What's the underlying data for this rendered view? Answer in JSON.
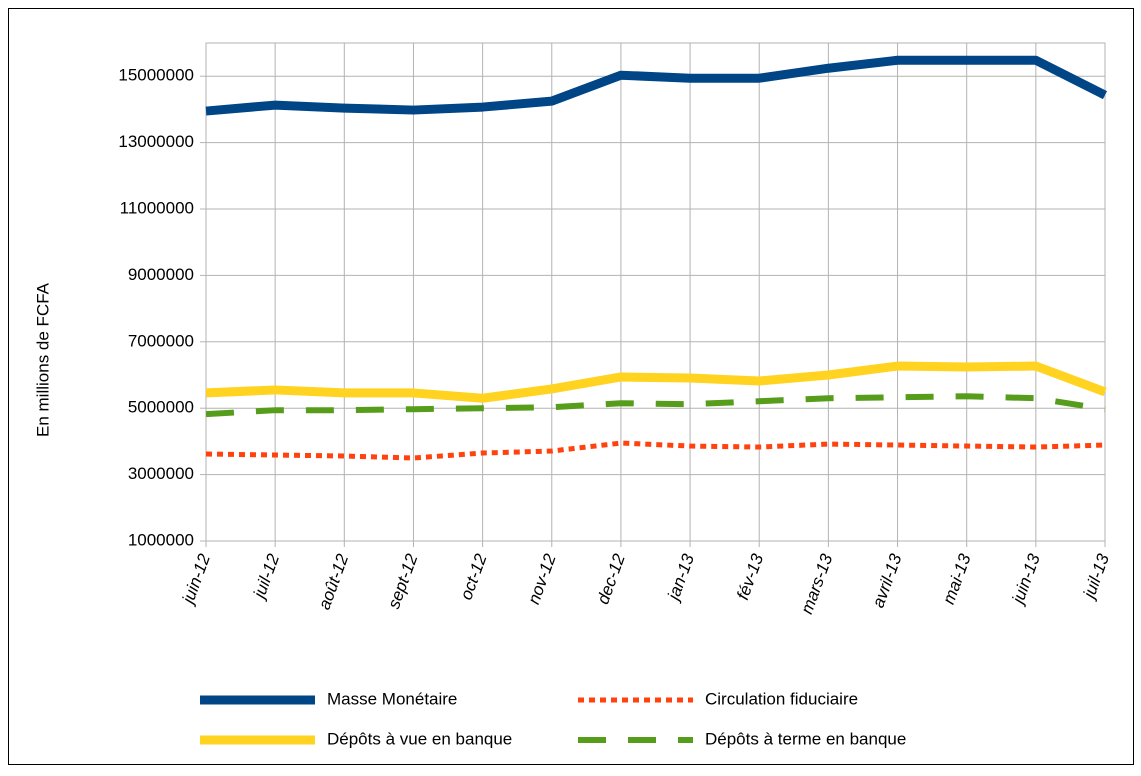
{
  "chart_data": {
    "type": "line",
    "y_label": "En millions de FCFA",
    "categories": [
      "juin-12",
      "juil-12",
      "août-12",
      "sept-12",
      "oct-12",
      "nov-12",
      "dec-12",
      "jan-13",
      "fév-13",
      "mars-13",
      "avril-13",
      "mai-13",
      "juin-13",
      "juil-13"
    ],
    "series": [
      {
        "name": "Masse Monétaire",
        "color": "#004586",
        "values": [
          13950000,
          14130000,
          14040000,
          13980000,
          14070000,
          14250000,
          15030000,
          14940000,
          14940000,
          15240000,
          15480000,
          15480000,
          15480000,
          14430000
        ]
      },
      {
        "name": "Circulation fiduciaire",
        "color": "#ff420e",
        "values": [
          3620000,
          3590000,
          3560000,
          3500000,
          3650000,
          3710000,
          3950000,
          3860000,
          3830000,
          3920000,
          3890000,
          3860000,
          3830000,
          3890000
        ]
      },
      {
        "name": "Dépôts à vue en banque",
        "color": "#ffd320",
        "values": [
          5460000,
          5550000,
          5460000,
          5460000,
          5300000,
          5580000,
          5940000,
          5910000,
          5820000,
          6000000,
          6270000,
          6240000,
          6270000,
          5490000
        ]
      },
      {
        "name": "Dépôts à terme en banque",
        "color": "#579d1c",
        "values": [
          4820000,
          4940000,
          4940000,
          4970000,
          5000000,
          5030000,
          5150000,
          5120000,
          5210000,
          5300000,
          5330000,
          5360000,
          5300000,
          4970000
        ]
      }
    ],
    "ylim": [
      1000000,
      16000000
    ],
    "yticks": [
      1000000,
      3000000,
      5000000,
      7000000,
      9000000,
      11000000,
      13000000,
      15000000
    ],
    "grid": true
  }
}
